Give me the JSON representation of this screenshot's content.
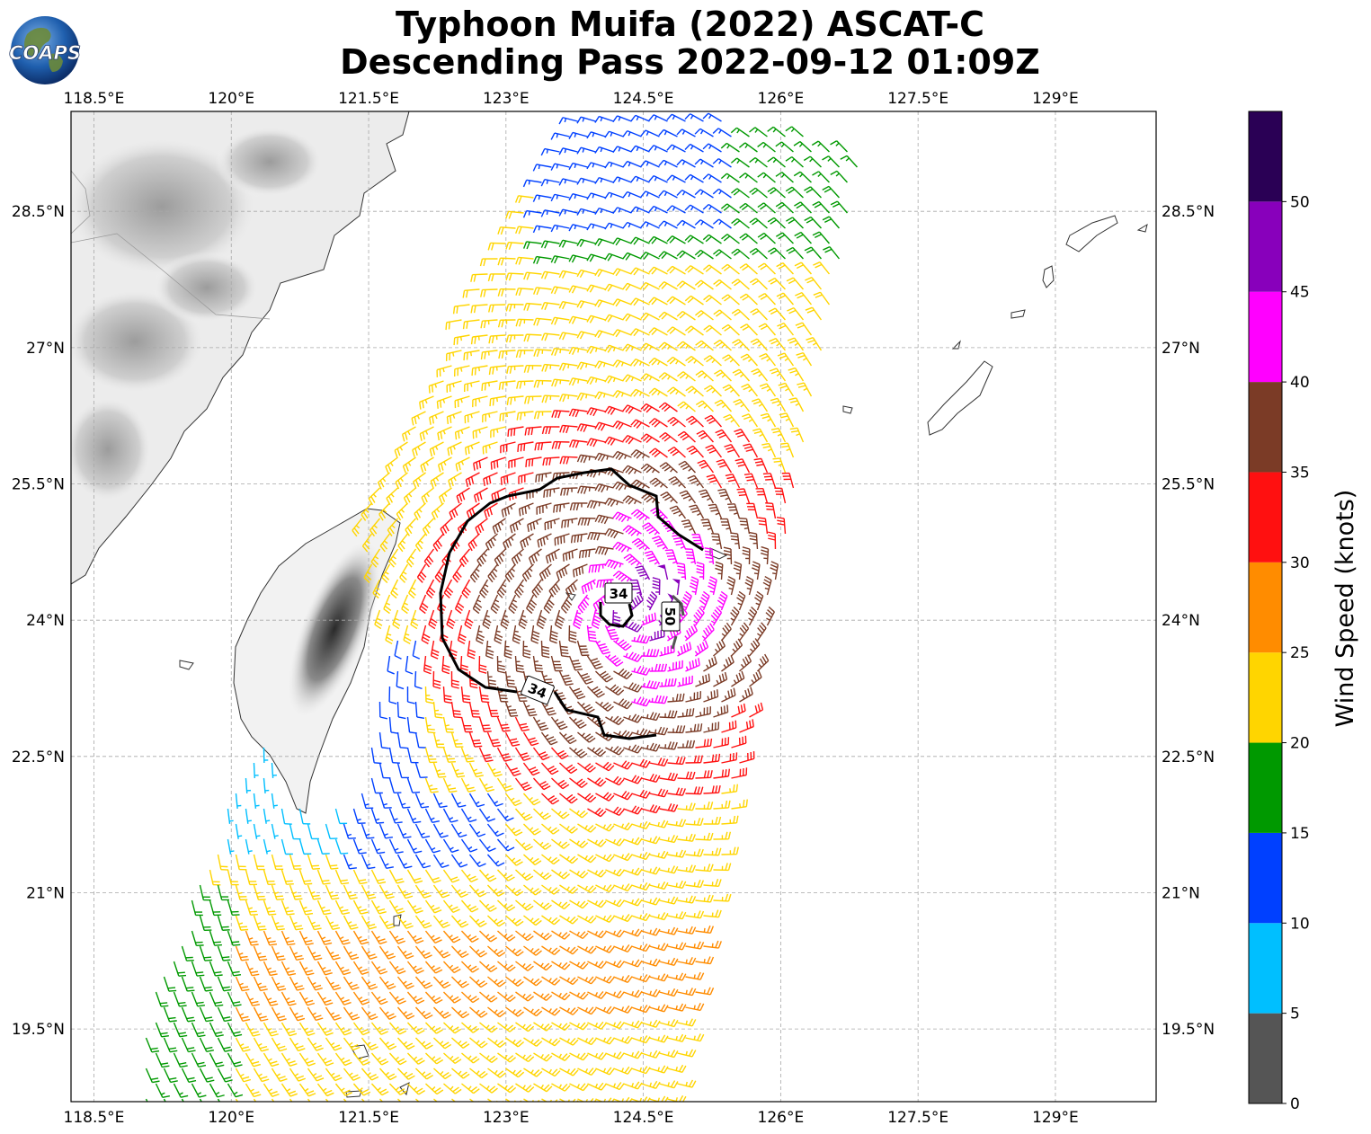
{
  "header": {
    "title_line1": "Typhoon Muifa (2022) ASCAT-C",
    "title_line2": "Descending Pass 2022-09-12 01:09Z",
    "logo_text": "COAPS"
  },
  "map": {
    "lon_labels": [
      "118.5°E",
      "120°E",
      "121.5°E",
      "123°E",
      "124.5°E",
      "126°E",
      "127.5°E",
      "129°E"
    ],
    "lat_labels": [
      "28.5°N",
      "27°N",
      "25.5°N",
      "24°N",
      "22.5°N",
      "21°N",
      "19.5°N"
    ],
    "lon_values": [
      118.5,
      120,
      121.5,
      123,
      124.5,
      126,
      127.5,
      129
    ],
    "lat_values": [
      28.5,
      27,
      25.5,
      24,
      22.5,
      21,
      19.5
    ],
    "lon_range": [
      118.25,
      130.1
    ],
    "lat_range": [
      18.7,
      29.6
    ],
    "contour_labels": [
      "34",
      "34",
      "50"
    ],
    "cyclone_center": [
      124.3,
      24.15
    ]
  },
  "colorbar": {
    "label": "Wind Speed (knots)",
    "tick_labels": [
      "0",
      "5",
      "10",
      "15",
      "20",
      "25",
      "30",
      "35",
      "40",
      "45",
      "50"
    ],
    "bins": [
      {
        "min": 0,
        "max": 5,
        "color": "#555555"
      },
      {
        "min": 5,
        "max": 10,
        "color": "#00bfff"
      },
      {
        "min": 10,
        "max": 15,
        "color": "#0040ff"
      },
      {
        "min": 15,
        "max": 20,
        "color": "#009900"
      },
      {
        "min": 20,
        "max": 25,
        "color": "#ffd500"
      },
      {
        "min": 25,
        "max": 30,
        "color": "#ff8c00"
      },
      {
        "min": 30,
        "max": 35,
        "color": "#ff1010"
      },
      {
        "min": 35,
        "max": 40,
        "color": "#7b3b26"
      },
      {
        "min": 40,
        "max": 45,
        "color": "#ff00ff"
      },
      {
        "min": 45,
        "max": 50,
        "color": "#8800bb"
      },
      {
        "min": 50,
        "max": 55,
        "color": "#2a0055"
      }
    ]
  }
}
